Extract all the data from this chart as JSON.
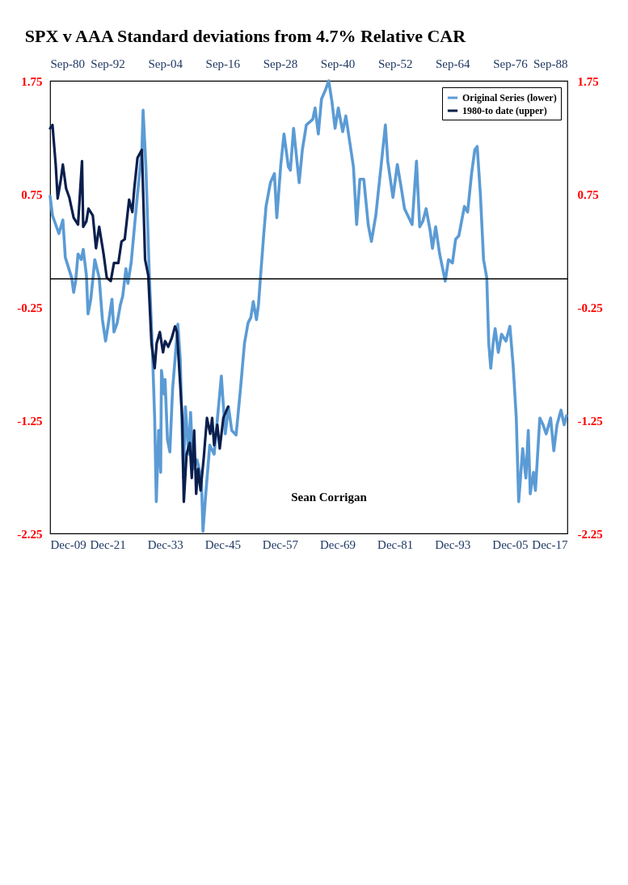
{
  "chart_data": {
    "type": "line",
    "title": "SPX v AAA Standard deviations from 4.7% Relative CAR",
    "annotations": [
      "Sean Corrigan"
    ],
    "xlim": [
      "1909-12",
      "2017-12"
    ],
    "xticks": [
      {
        "value": "1909-12",
        "label": "Dec-09"
      },
      {
        "value": "1921-12",
        "label": "Dec-21"
      },
      {
        "value": "1933-12",
        "label": "Dec-33"
      },
      {
        "value": "1945-12",
        "label": "Dec-45"
      },
      {
        "value": "1957-12",
        "label": "Dec-57"
      },
      {
        "value": "1969-12",
        "label": "Dec-69"
      },
      {
        "value": "1981-12",
        "label": "Dec-81"
      },
      {
        "value": "1993-12",
        "label": "Dec-93"
      },
      {
        "value": "2005-12",
        "label": "Dec-05"
      },
      {
        "value": "2017-12",
        "label": "Dec-17"
      }
    ],
    "x2lim": [
      "1980-09",
      "2088-09"
    ],
    "x2ticks": [
      {
        "value": "1980-09",
        "label": "Sep-80"
      },
      {
        "value": "1992-09",
        "label": "Sep-92"
      },
      {
        "value": "2004-09",
        "label": "Sep-04"
      },
      {
        "value": "2016-09",
        "label": "Sep-16"
      },
      {
        "value": "2028-09",
        "label": "Sep-28"
      },
      {
        "value": "2040-09",
        "label": "Sep-40"
      },
      {
        "value": "2052-09",
        "label": "Sep-52"
      },
      {
        "value": "2064-09",
        "label": "Sep-64"
      },
      {
        "value": "2076-09",
        "label": "Sep-76"
      },
      {
        "value": "2088-09",
        "label": "Sep-88"
      }
    ],
    "ylim": [
      -2.25,
      1.75
    ],
    "yticks": [
      -2.25,
      -1.25,
      -0.25,
      0.75,
      1.75
    ],
    "y2lim": [
      -2.25,
      1.75
    ],
    "y2ticks": [
      -2.25,
      -1.25,
      -0.25,
      0.75,
      1.75
    ],
    "ref_lines": [
      {
        "axis": "y",
        "value": 0,
        "color": "#000000"
      }
    ],
    "legend": "top right",
    "marker": "none",
    "line_style": "solid",
    "series": [
      {
        "name": "Original Series (lower)",
        "color": "#5b9bd5",
        "x": [
          "1909-12",
          "1910-06",
          "1911-10",
          "1912-08",
          "1913-02",
          "1914-06",
          "1914-11",
          "1915-04",
          "1915-10",
          "1916-06",
          "1916-11",
          "1917-07",
          "1917-11",
          "1918-06",
          "1919-04",
          "1920-03",
          "1920-11",
          "1921-07",
          "1921-12",
          "1922-11",
          "1923-04",
          "1923-12",
          "1924-08",
          "1925-02",
          "1925-10",
          "1926-03",
          "1926-11",
          "1928-03",
          "1929-02",
          "1929-05",
          "1929-12",
          "1930-08",
          "1931-04",
          "1931-10",
          "1932-02",
          "1932-08",
          "1933-01",
          "1933-03",
          "1933-10",
          "1933-12",
          "1934-06",
          "1934-12",
          "1935-07",
          "1936-01",
          "1936-08",
          "1937-02",
          "1937-10",
          "1938-03",
          "1938-11",
          "1939-04",
          "1939-10",
          "1940-08",
          "1941-07",
          "1941-11",
          "1942-06",
          "1943-04",
          "1944-03",
          "1945-09",
          "1946-07",
          "1947-03",
          "1947-11",
          "1948-10",
          "1949-09",
          "1950-07",
          "1951-04",
          "1951-11",
          "1952-05",
          "1953-01",
          "1953-06",
          "1953-11",
          "1954-07",
          "1955-01",
          "1955-12",
          "1956-10",
          "1957-04",
          "1958-02",
          "1958-10",
          "1959-09",
          "1960-02",
          "1960-10",
          "1961-12",
          "1962-08",
          "1963-06",
          "1964-10",
          "1965-04",
          "1965-12",
          "1966-08",
          "1967-06",
          "1968-02",
          "1968-10",
          "1969-06",
          "1970-02",
          "1971-01",
          "1971-09",
          "1972-05",
          "1973-04",
          "1973-12",
          "1974-08",
          "1975-06",
          "1976-05",
          "1977-01",
          "1977-12",
          "1979-01",
          "1979-12",
          "1980-06",
          "1981-07",
          "1982-06",
          "1983-04",
          "1983-12",
          "1984-08",
          "1985-07",
          "1986-06",
          "1987-02",
          "1987-10",
          "1988-06",
          "1989-04",
          "1989-10",
          "1990-06",
          "1991-04",
          "1992-06",
          "1993-02",
          "1993-12",
          "1994-08",
          "1995-04",
          "1996-06",
          "1997-02",
          "1997-12",
          "1998-08",
          "1999-02",
          "1999-10",
          "2000-06",
          "2001-02",
          "2001-07",
          "2001-12",
          "2002-06",
          "2002-11",
          "2003-07",
          "2004-03",
          "2005-02",
          "2005-12",
          "2006-08",
          "2007-04",
          "2007-10",
          "2008-08",
          "2009-04",
          "2009-10",
          "2010-03",
          "2010-11",
          "2011-04",
          "2012-03",
          "2012-11",
          "2013-07",
          "2014-06",
          "2015-02",
          "2015-10",
          "2016-08",
          "2017-04",
          "2017-10"
        ],
        "values": [
          0.73,
          0.56,
          0.4,
          0.52,
          0.19,
          0.01,
          -0.12,
          -0.02,
          0.22,
          0.17,
          0.26,
          0.03,
          -0.31,
          -0.18,
          0.17,
          0.01,
          -0.36,
          -0.55,
          -0.44,
          -0.18,
          -0.47,
          -0.39,
          -0.23,
          -0.15,
          0.09,
          -0.04,
          0.14,
          0.75,
          1.14,
          1.49,
          0.99,
          0.09,
          -0.6,
          -1.23,
          -1.97,
          -1.34,
          -1.71,
          -0.81,
          -1.02,
          -0.89,
          -1.42,
          -1.53,
          -0.97,
          -0.71,
          -0.4,
          -0.71,
          -1.76,
          -1.13,
          -1.55,
          -1.18,
          -1.68,
          -1.6,
          -1.76,
          -2.23,
          -1.9,
          -1.47,
          -1.55,
          -0.86,
          -1.37,
          -1.13,
          -1.34,
          -1.38,
          -0.97,
          -0.57,
          -0.39,
          -0.34,
          -0.2,
          -0.36,
          -0.23,
          0.01,
          0.38,
          0.64,
          0.85,
          0.93,
          0.54,
          1.01,
          1.28,
          0.99,
          0.96,
          1.33,
          0.85,
          1.14,
          1.36,
          1.41,
          1.51,
          1.28,
          1.59,
          1.67,
          1.75,
          1.57,
          1.33,
          1.51,
          1.3,
          1.44,
          1.25,
          0.99,
          0.48,
          0.88,
          0.88,
          0.48,
          0.33,
          0.56,
          0.99,
          1.36,
          1.04,
          0.72,
          1.01,
          0.8,
          0.62,
          0.56,
          0.48,
          1.04,
          0.46,
          0.51,
          0.62,
          0.43,
          0.27,
          0.46,
          0.22,
          -0.02,
          0.17,
          0.14,
          0.35,
          0.38,
          0.64,
          0.59,
          0.93,
          1.14,
          1.17,
          0.75,
          0.17,
          0.01,
          -0.57,
          -0.79,
          -0.57,
          -0.44,
          -0.65,
          -0.49,
          -0.55,
          -0.42,
          -0.76,
          -1.23,
          -1.97,
          -1.5,
          -1.76,
          -1.34,
          -1.9,
          -1.71,
          -1.87,
          -1.23,
          -1.29,
          -1.37,
          -1.23,
          -1.52,
          -1.29,
          -1.16,
          -1.29,
          -1.21
        ]
      },
      {
        "name": "1980-to date (upper)",
        "color": "#0b1f4d",
        "axis": "x2",
        "x": [
          "1980-09",
          "1981-03",
          "1981-11",
          "1982-04",
          "1982-12",
          "1983-05",
          "1984-01",
          "1984-09",
          "1985-08",
          "1986-07",
          "1987-05",
          "1987-08",
          "1988-04",
          "1988-09",
          "1989-08",
          "1990-04",
          "1990-12",
          "1991-11",
          "1992-07",
          "1993-05",
          "1994-01",
          "1994-12",
          "1995-08",
          "1996-04",
          "1997-03",
          "1997-11",
          "1998-04",
          "1998-12",
          "1999-11",
          "2000-07",
          "2001-03",
          "2001-11",
          "2002-07",
          "2002-12",
          "2003-08",
          "2004-04",
          "2004-09",
          "2005-05",
          "2006-02",
          "2006-10",
          "2007-03",
          "2007-08",
          "2008-04",
          "2008-08",
          "2009-03",
          "2009-11",
          "2010-04",
          "2010-10",
          "2011-03",
          "2011-08",
          "2012-02",
          "2012-10",
          "2013-06",
          "2014-02",
          "2014-07",
          "2014-12",
          "2015-08",
          "2016-02",
          "2016-11",
          "2017-11"
        ],
        "values": [
          1.33,
          1.36,
          1.01,
          0.71,
          0.88,
          1.01,
          0.8,
          0.72,
          0.54,
          0.48,
          1.04,
          0.46,
          0.51,
          0.62,
          0.56,
          0.27,
          0.46,
          0.22,
          0.01,
          -0.02,
          0.14,
          0.14,
          0.33,
          0.35,
          0.7,
          0.59,
          0.8,
          1.07,
          1.14,
          0.17,
          0.03,
          -0.57,
          -0.79,
          -0.57,
          -0.47,
          -0.65,
          -0.55,
          -0.6,
          -0.52,
          -0.42,
          -0.47,
          -0.76,
          -1.23,
          -1.97,
          -1.55,
          -1.45,
          -1.76,
          -1.34,
          -1.9,
          -1.68,
          -1.87,
          -1.58,
          -1.23,
          -1.37,
          -1.23,
          -1.47,
          -1.29,
          -1.5,
          -1.23,
          -1.13
        ]
      }
    ]
  }
}
